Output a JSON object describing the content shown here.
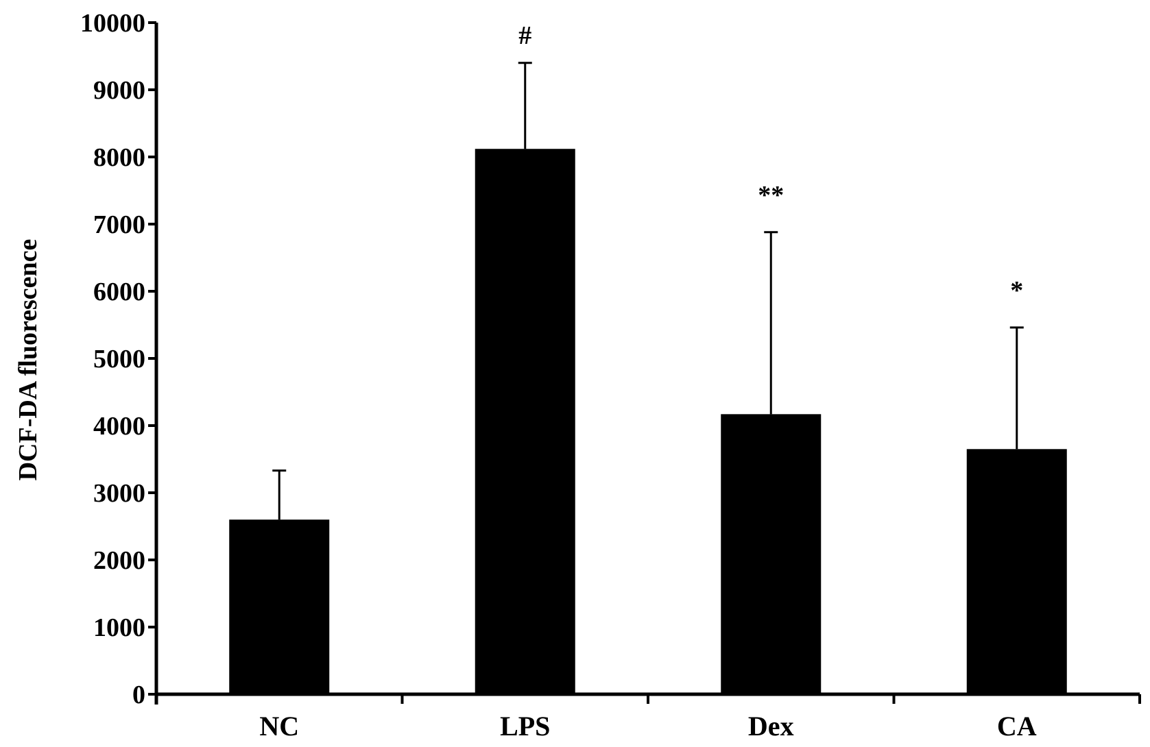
{
  "chart_data": {
    "type": "bar",
    "title": "",
    "xlabel": "",
    "ylabel": "DCF-DA fluorescence",
    "categories": [
      "NC",
      "LPS",
      "Dex",
      "CA"
    ],
    "values": [
      2600,
      8120,
      4170,
      3650
    ],
    "error_upper": [
      3330,
      9400,
      6880,
      5460
    ],
    "annotations": [
      "",
      "#",
      "**",
      "*"
    ],
    "ylim": [
      0,
      10000
    ],
    "yticks": [
      "0",
      "1000",
      "2000",
      "3000",
      "4000",
      "5000",
      "6000",
      "7000",
      "8000",
      "9000",
      "10000"
    ],
    "grid": false,
    "legend": "none",
    "bar_color": "#000000"
  }
}
